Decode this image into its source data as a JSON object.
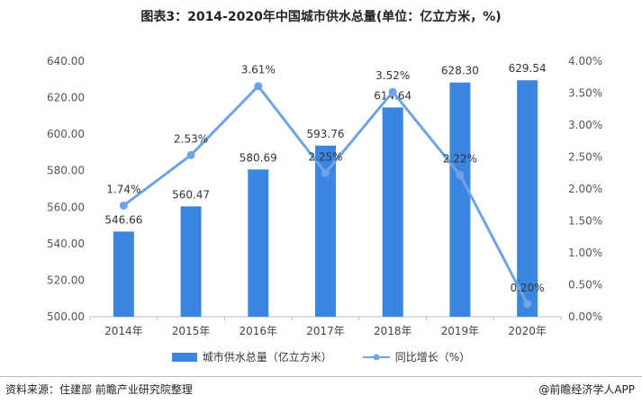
{
  "title": "图表3：2014-2020年中国城市供水总量(单位：亿立方米，%)",
  "chart_data": {
    "type": "bar",
    "categories": [
      "2014年",
      "2015年",
      "2016年",
      "2017年",
      "2018年",
      "2019年",
      "2020年"
    ],
    "series": [
      {
        "name": "城市供水总量（亿立方米）",
        "type": "bar",
        "axis": "left",
        "values": [
          546.66,
          560.47,
          580.69,
          593.76,
          614.64,
          628.3,
          629.54
        ],
        "labels": [
          "546.66",
          "560.47",
          "580.69",
          "593.76",
          "614.64",
          "628.30",
          "629.54"
        ]
      },
      {
        "name": "同比增长（%）",
        "type": "line",
        "axis": "right",
        "values": [
          1.74,
          2.53,
          3.61,
          2.25,
          3.52,
          2.22,
          0.2
        ],
        "labels": [
          "1.74%",
          "2.53%",
          "3.61%",
          "2.25%",
          "3.52%",
          "2.22%",
          "0.20%"
        ]
      }
    ],
    "y_left": {
      "range": [
        500,
        640
      ],
      "ticks": [
        500,
        520,
        540,
        560,
        580,
        600,
        620,
        640
      ],
      "tick_labels": [
        "500.00",
        "520.00",
        "540.00",
        "560.00",
        "580.00",
        "600.00",
        "620.00",
        "640.00"
      ]
    },
    "y_right": {
      "range": [
        0,
        4
      ],
      "ticks": [
        0,
        0.5,
        1,
        1.5,
        2,
        2.5,
        3,
        3.5,
        4
      ],
      "tick_labels": [
        "0.00%",
        "0.50%",
        "1.00%",
        "1.50%",
        "2.00%",
        "2.50%",
        "3.00%",
        "3.50%",
        "4.00%"
      ]
    },
    "grid": false,
    "legend_position": "bottom",
    "colors": {
      "bar": "#3d86e0",
      "line": "#6ea3e8"
    }
  },
  "footer": {
    "source": "资料来源：住建部 前瞻产业研究院整理",
    "brand": "@前瞻经济学人APP"
  }
}
